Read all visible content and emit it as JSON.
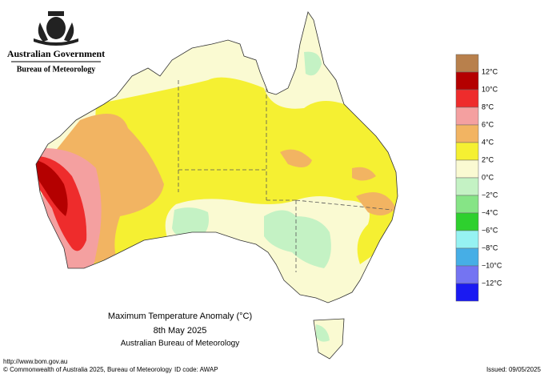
{
  "header": {
    "government": "Australian Government",
    "agency": "Bureau of Meteorology"
  },
  "legend": {
    "labels": [
      "12°C",
      "10°C",
      "8°C",
      "6°C",
      "4°C",
      "2°C",
      "0°C",
      "−2°C",
      "−4°C",
      "−6°C",
      "−8°C",
      "−10°C",
      "−12°C"
    ],
    "colors": [
      "#b8804c",
      "#b40000",
      "#ee2c2c",
      "#f4a0a0",
      "#f2b462",
      "#f5f032",
      "#fafad2",
      "#c4f2c4",
      "#86e486",
      "#2ed02e",
      "#96f2f2",
      "#46aee6",
      "#7474f2",
      "#1a1af2"
    ]
  },
  "caption": {
    "title": "Maximum Temperature Anomaly (°C)",
    "date": "8th May 2025",
    "source": "Australian Bureau of Meteorology"
  },
  "footer": {
    "url": "http://www.bom.gov.au",
    "copyright": "© Commonwealth of Australia 2025, Bureau of Meteorology",
    "id_code": "ID code: AWAP",
    "issued": "Issued: 09/05/2025"
  }
}
